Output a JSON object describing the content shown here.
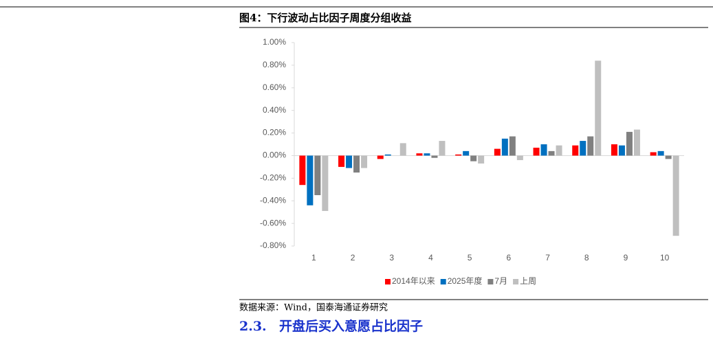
{
  "chart_data": {
    "type": "bar",
    "title": "图4：下行波动占比因子周度分组收益",
    "categories": [
      "1",
      "2",
      "3",
      "4",
      "5",
      "6",
      "7",
      "8",
      "9",
      "10"
    ],
    "series": [
      {
        "name": "2014年以来",
        "color": "#ff0000",
        "values": [
          -0.26,
          -0.1,
          -0.03,
          0.02,
          0.01,
          0.06,
          0.07,
          0.09,
          0.1,
          0.03
        ]
      },
      {
        "name": "2025年度",
        "color": "#0070c0",
        "values": [
          -0.44,
          -0.11,
          0.01,
          0.02,
          0.04,
          0.15,
          0.1,
          0.13,
          0.09,
          0.04
        ]
      },
      {
        "name": "7月",
        "color": "#808080",
        "values": [
          -0.35,
          -0.15,
          0.0,
          -0.02,
          -0.05,
          0.17,
          0.04,
          0.17,
          0.21,
          -0.03
        ]
      },
      {
        "name": "上周",
        "color": "#bfbfbf",
        "values": [
          -0.49,
          -0.11,
          0.11,
          0.13,
          -0.07,
          -0.04,
          0.09,
          0.84,
          0.23,
          -0.71
        ]
      }
    ],
    "ylim": [
      -0.8,
      1.0
    ],
    "yticks": [
      {
        "value": -0.8,
        "label": "-0.80%"
      },
      {
        "value": -0.6,
        "label": "-0.60%"
      },
      {
        "value": -0.4,
        "label": "-0.40%"
      },
      {
        "value": -0.2,
        "label": "-0.20%"
      },
      {
        "value": 0,
        "label": "0.00%"
      },
      {
        "value": 0.2,
        "label": "0.20%"
      },
      {
        "value": 0.4,
        "label": "0.40%"
      },
      {
        "value": 0.6,
        "label": "0.60%"
      },
      {
        "value": 0.8,
        "label": "0.80%"
      },
      {
        "value": 1.0,
        "label": "1.00%"
      }
    ],
    "grid": false,
    "legend": "bottom"
  },
  "source": "数据来源：Wind，国泰海通证券研究",
  "section_number": "2.3.",
  "section_title": "开盘后买入意愿占比因子"
}
